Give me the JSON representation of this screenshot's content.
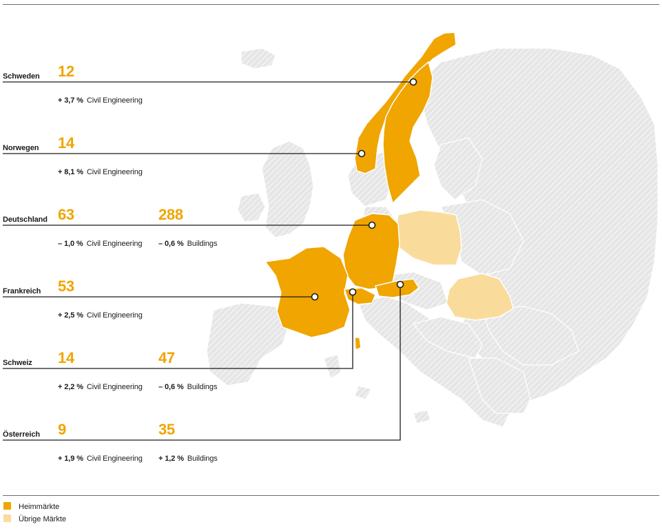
{
  "colors": {
    "home_market": "#f0a500",
    "other_market": "#f9dc9c",
    "background_land": "#e6e6e6",
    "line": "#1a1a1a"
  },
  "rows": [
    {
      "country": "Schweden",
      "value1": "12",
      "change1": "+ 3,7 %",
      "label1": "Civil Engineering",
      "value2": "",
      "change2": "",
      "label2": ""
    },
    {
      "country": "Norwegen",
      "value1": "14",
      "change1": "+ 8,1 %",
      "label1": "Civil Engineering",
      "value2": "",
      "change2": "",
      "label2": ""
    },
    {
      "country": "Deutschland",
      "value1": "63",
      "change1": "– 1,0 %",
      "label1": "Civil Engineering",
      "value2": "288",
      "change2": "– 0,6 %",
      "label2": "Buildings"
    },
    {
      "country": "Frankreich",
      "value1": "53",
      "change1": "+ 2,5 %",
      "label1": "Civil Engineering",
      "value2": "",
      "change2": "",
      "label2": ""
    },
    {
      "country": "Schweiz",
      "value1": "14",
      "change1": "+ 2,2 %",
      "label1": "Civil Engineering",
      "value2": "47",
      "change2": "– 0,6 %",
      "label2": "Buildings"
    },
    {
      "country": "Österreich",
      "value1": "9",
      "change1": "+ 1,9 %",
      "label1": "Civil Engineering",
      "value2": "35",
      "change2": "+ 1,2 %",
      "label2": "Buildings"
    }
  ],
  "legend": [
    {
      "label": "Heimmärkte",
      "color": "#f0a500"
    },
    {
      "label": "Übrige Märkte",
      "color": "#f9dc9c"
    }
  ]
}
